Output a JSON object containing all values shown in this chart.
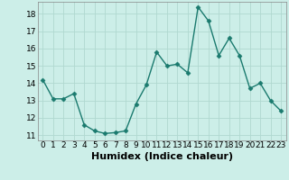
{
  "x": [
    0,
    1,
    2,
    3,
    4,
    5,
    6,
    7,
    8,
    9,
    10,
    11,
    12,
    13,
    14,
    15,
    16,
    17,
    18,
    19,
    20,
    21,
    22,
    23
  ],
  "y": [
    14.2,
    13.1,
    13.1,
    13.4,
    11.6,
    11.25,
    11.1,
    11.15,
    11.25,
    12.8,
    13.9,
    15.8,
    15.0,
    15.1,
    14.6,
    18.4,
    17.6,
    15.6,
    16.6,
    15.6,
    13.7,
    14.0,
    13.0,
    12.4
  ],
  "line_color": "#1a7a6e",
  "marker_color": "#1a7a6e",
  "bg_color": "#cceee8",
  "grid_color": "#b0d8d0",
  "xlabel": "Humidex (Indice chaleur)",
  "ylim": [
    10.7,
    18.7
  ],
  "xlim": [
    -0.5,
    23.5
  ],
  "yticks": [
    11,
    12,
    13,
    14,
    15,
    16,
    17,
    18
  ],
  "xticks": [
    0,
    1,
    2,
    3,
    4,
    5,
    6,
    7,
    8,
    9,
    10,
    11,
    12,
    13,
    14,
    15,
    16,
    17,
    18,
    19,
    20,
    21,
    22,
    23
  ],
  "tick_fontsize": 6.5,
  "xlabel_fontsize": 8,
  "line_width": 1.0,
  "marker_size": 2.5
}
